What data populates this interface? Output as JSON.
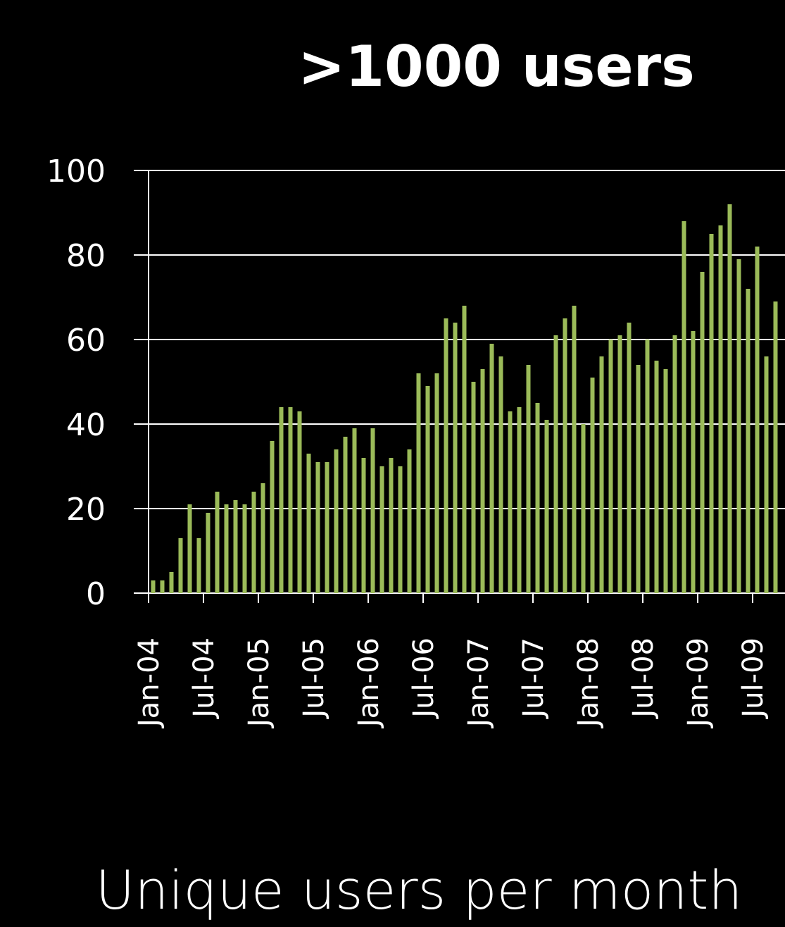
{
  "chart_data": {
    "type": "bar",
    "title": ">1000 users",
    "subtitle": "Unique users per month",
    "categories": [
      "Jan-04",
      null,
      null,
      null,
      null,
      null,
      "Jul-04",
      null,
      null,
      null,
      null,
      null,
      "Jan-05",
      null,
      null,
      null,
      null,
      null,
      "Jul-05",
      null,
      null,
      null,
      null,
      null,
      "Jan-06",
      null,
      null,
      null,
      null,
      null,
      "Jul-06",
      null,
      null,
      null,
      null,
      null,
      "Jan-07",
      null,
      null,
      null,
      null,
      null,
      "Jul-07",
      null,
      null,
      null,
      null,
      null,
      "Jan-08",
      null,
      null,
      null,
      null,
      null,
      "Jul-08",
      null,
      null,
      null,
      null,
      null,
      "Jan-09",
      null,
      null,
      null,
      null,
      null,
      "Jul-09",
      null,
      null
    ],
    "values": [
      3,
      3,
      5,
      13,
      21,
      13,
      19,
      24,
      21,
      22,
      21,
      24,
      26,
      36,
      44,
      44,
      43,
      33,
      31,
      31,
      34,
      37,
      39,
      32,
      39,
      30,
      32,
      30,
      34,
      52,
      49,
      52,
      65,
      64,
      68,
      50,
      53,
      59,
      56,
      43,
      44,
      54,
      45,
      41,
      61,
      65,
      68,
      40,
      51,
      56,
      60,
      61,
      64,
      54,
      60,
      55,
      53,
      61,
      88,
      62,
      76,
      85,
      87,
      92,
      79,
      72,
      82,
      56,
      69
    ],
    "color": "#9bbb59",
    "ylim": [
      0,
      100
    ],
    "yticks": [
      0,
      20,
      40,
      60,
      80,
      100
    ],
    "grid": true
  }
}
